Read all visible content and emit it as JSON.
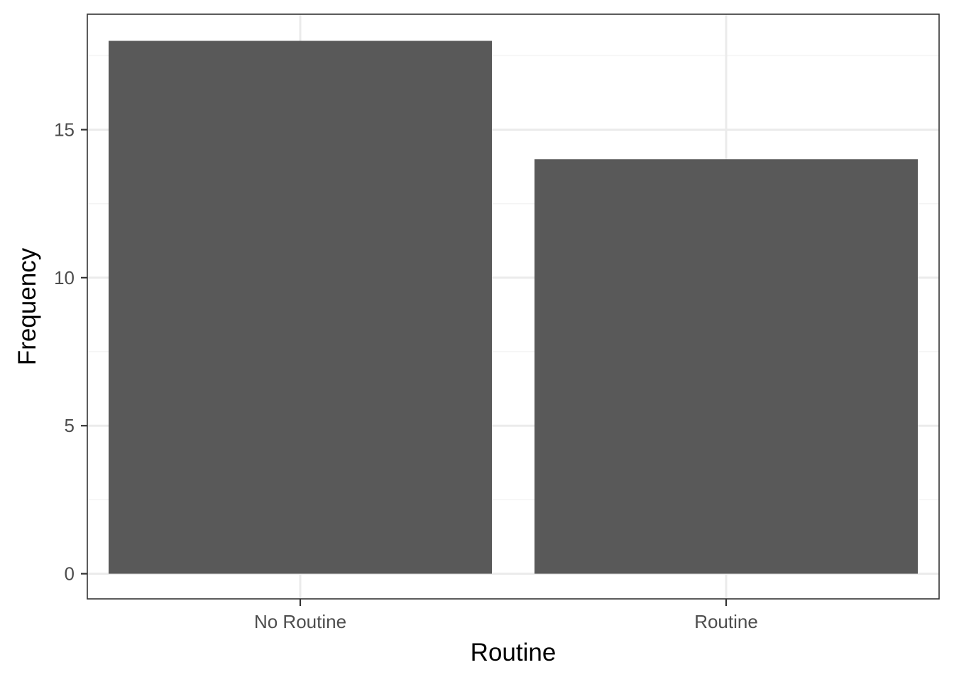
{
  "chart_data": {
    "type": "bar",
    "title": "",
    "xlabel": "Routine",
    "ylabel": "Frequency",
    "categories": [
      "No Routine",
      "Routine"
    ],
    "values": [
      18,
      14
    ],
    "ylim": [
      -0.85,
      18.9
    ],
    "y_ticks": [
      0,
      5,
      10,
      15
    ],
    "grid": true,
    "legend": "none",
    "colors": {
      "bar": "#595959",
      "panel_background": "#ffffff",
      "grid_major": "#ebebeb",
      "grid_minor": "#f4f4f4",
      "panel_border": "#333333",
      "tick_label": "#4d4d4d",
      "axis_title": "#000000"
    }
  }
}
